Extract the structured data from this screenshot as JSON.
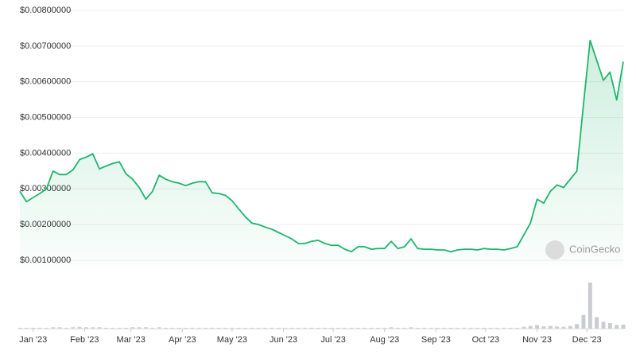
{
  "chart_data": {
    "type": "line",
    "watermark": "CoinGecko",
    "values": [
      0.00293,
      0.00264,
      0.00276,
      0.00287,
      0.003,
      0.0035,
      0.0034,
      0.0034,
      0.00353,
      0.00382,
      0.00389,
      0.00398,
      0.00356,
      0.00364,
      0.00371,
      0.00376,
      0.00342,
      0.00327,
      0.00304,
      0.00271,
      0.00293,
      0.00338,
      0.00327,
      0.0032,
      0.00316,
      0.00309,
      0.00316,
      0.0032,
      0.0032,
      0.00289,
      0.00287,
      0.00282,
      0.00267,
      0.00244,
      0.00222,
      0.00204,
      0.002,
      0.00193,
      0.00187,
      0.00178,
      0.00169,
      0.0016,
      0.00147,
      0.00147,
      0.00153,
      0.00156,
      0.00147,
      0.00142,
      0.00142,
      0.00131,
      0.00124,
      0.00138,
      0.00138,
      0.00131,
      0.00133,
      0.00133,
      0.00153,
      0.00133,
      0.00138,
      0.0016,
      0.00133,
      0.00131,
      0.00131,
      0.00129,
      0.00129,
      0.00124,
      0.00129,
      0.00131,
      0.00131,
      0.00129,
      0.00133,
      0.00131,
      0.00131,
      0.00129,
      0.00133,
      0.00138,
      0.00171,
      0.00204,
      0.00271,
      0.0026,
      0.00293,
      0.00311,
      0.00304,
      0.00327,
      0.0035,
      0.00538,
      0.00716,
      0.0066,
      0.00604,
      0.00627,
      0.00549,
      0.00656
    ],
    "color": "#1fb56d",
    "volumes": [
      2,
      2,
      2,
      2,
      2,
      3,
      3,
      2,
      3,
      4,
      3,
      3,
      3,
      2,
      2,
      2,
      2,
      3,
      3,
      3,
      2,
      3,
      2,
      2,
      2,
      2,
      2,
      2,
      2,
      2,
      2,
      2,
      2,
      2,
      2,
      2,
      2,
      2,
      2,
      2,
      2,
      2,
      2,
      2,
      2,
      2,
      2,
      2,
      2,
      2,
      2,
      2,
      2,
      2,
      2,
      2,
      3,
      2,
      2,
      3,
      2,
      2,
      2,
      2,
      2,
      2,
      2,
      2,
      2,
      2,
      2,
      2,
      2,
      2,
      2,
      2,
      4,
      6,
      8,
      5,
      6,
      5,
      4,
      6,
      10,
      30,
      100,
      25,
      15,
      12,
      8,
      9
    ],
    "volume_color": "#c9ccd1",
    "vlim": [
      0,
      100
    ],
    "xlim": [
      0,
      91
    ],
    "xticks": [
      {
        "value": 2,
        "label": "Jan '23"
      },
      {
        "value": 9.75,
        "label": "Feb '23"
      },
      {
        "value": 16.75,
        "label": "Mar '23"
      },
      {
        "value": 24.5,
        "label": "Apr '23"
      },
      {
        "value": 32,
        "label": "May '23"
      },
      {
        "value": 39.75,
        "label": "Jun '23"
      },
      {
        "value": 47.25,
        "label": "Jul '23"
      },
      {
        "value": 55,
        "label": "Aug '23"
      },
      {
        "value": 62.75,
        "label": "Sep '23"
      },
      {
        "value": 70.25,
        "label": "Oct '23"
      },
      {
        "value": 78,
        "label": "Nov '23"
      },
      {
        "value": 85.5,
        "label": "Dec '23"
      }
    ],
    "ylim": [
      0.001,
      0.008
    ],
    "yticks": [
      {
        "value": 0.001,
        "label": "$0.00100000"
      },
      {
        "value": 0.002,
        "label": "$0.00200000"
      },
      {
        "value": 0.003,
        "label": "$0.00300000"
      },
      {
        "value": 0.004,
        "label": "$0.00400000"
      },
      {
        "value": 0.005,
        "label": "$0.00500000"
      },
      {
        "value": 0.006,
        "label": "$0.00600000"
      },
      {
        "value": 0.007,
        "label": "$0.00700000"
      },
      {
        "value": 0.008,
        "label": "$0.00800000"
      }
    ],
    "grid": true
  }
}
